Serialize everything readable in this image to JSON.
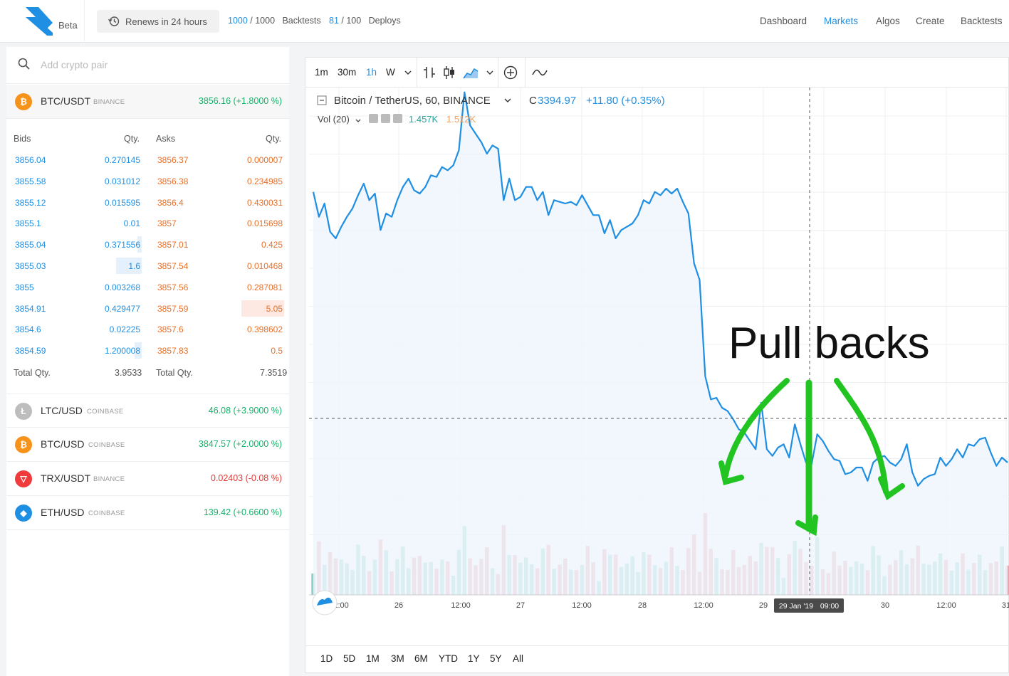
{
  "header": {
    "logo_label": "Beta",
    "renew_label": "Renews in 24 hours",
    "backtests_used": "1000",
    "backtests_total": "1000",
    "backtests_label": "Backtests",
    "deploys_used": "81",
    "deploys_total": "100",
    "deploys_label": "Deploys",
    "nav": [
      "Dashboard",
      "Markets",
      "Algos",
      "Create",
      "Backtests"
    ],
    "active_nav": "Markets"
  },
  "search": {
    "placeholder": "Add crypto pair"
  },
  "selected_pair": {
    "pair": "BTC/USDT",
    "exchange": "BINANCE",
    "price": "3856.16 (+1.8000 %)"
  },
  "orderbook": {
    "headers": {
      "bids": "Bids",
      "bid_qty": "Qty.",
      "asks": "Asks",
      "ask_qty": "Qty."
    },
    "rows": [
      {
        "bid": "3856.04",
        "bid_qty": "0.270145",
        "ask": "3856.37",
        "ask_qty": "0.000007"
      },
      {
        "bid": "3855.58",
        "bid_qty": "0.031012",
        "ask": "3856.38",
        "ask_qty": "0.234985"
      },
      {
        "bid": "3855.12",
        "bid_qty": "0.015595",
        "ask": "3856.4",
        "ask_qty": "0.430031"
      },
      {
        "bid": "3855.1",
        "bid_qty": "0.01",
        "ask": "3857",
        "ask_qty": "0.015698"
      },
      {
        "bid": "3855.04",
        "bid_qty": "0.371556",
        "ask": "3857.01",
        "ask_qty": "0.425"
      },
      {
        "bid": "3855.03",
        "bid_qty": "1.6",
        "ask": "3857.54",
        "ask_qty": "0.010468"
      },
      {
        "bid": "3855",
        "bid_qty": "0.003268",
        "ask": "3857.56",
        "ask_qty": "0.287081"
      },
      {
        "bid": "3854.91",
        "bid_qty": "0.429477",
        "ask": "3857.59",
        "ask_qty": "5.05"
      },
      {
        "bid": "3854.6",
        "bid_qty": "0.02225",
        "ask": "3857.6",
        "ask_qty": "0.398602"
      },
      {
        "bid": "3854.59",
        "bid_qty": "1.200008",
        "ask": "3857.83",
        "ask_qty": "0.5"
      }
    ],
    "total_label": "Total Qty.",
    "bid_total": "3.9533",
    "ask_total": "7.3519"
  },
  "pairs": [
    {
      "pair": "LTC/USD",
      "exchange": "COINBASE",
      "price": "46.08 (+3.9000 %)",
      "trend": "up",
      "icon": "litecoin-icon",
      "color": "#bdbdbd",
      "glyph": "Ł"
    },
    {
      "pair": "BTC/USD",
      "exchange": "COINBASE",
      "price": "3847.57 (+2.0000 %)",
      "trend": "up",
      "icon": "bitcoin-icon",
      "color": "#f7931a",
      "glyph": "₿"
    },
    {
      "pair": "TRX/USDT",
      "exchange": "BINANCE",
      "price": "0.02403 (-0.08 %)",
      "trend": "down",
      "icon": "tron-icon",
      "color": "#ef3b3b",
      "glyph": "▽"
    },
    {
      "pair": "ETH/USD",
      "exchange": "COINBASE",
      "price": "139.42 (+0.6600 %)",
      "trend": "up",
      "icon": "ethereum-icon",
      "color": "#1f8fe3",
      "glyph": "◆"
    }
  ],
  "chart_toolbar": {
    "timeframes": [
      "1m",
      "30m",
      "1h",
      "W"
    ],
    "active_timeframe": "1h"
  },
  "chart_legend": {
    "symbol": "Bitcoin / TetherUS, 60, BINANCE",
    "close_prefix": "C",
    "close": "3394.97",
    "change": "+11.80 (+0.35%)",
    "vol_label": "Vol (20)",
    "vol_a": "1.457K",
    "vol_b": "1.512K"
  },
  "chart_data": {
    "type": "line",
    "title": "",
    "x_tick_labels": [
      "12:00",
      "26",
      "12:00",
      "27",
      "12:00",
      "28",
      "12:00",
      "29",
      "09:00",
      "30",
      "12:00",
      "31"
    ],
    "crosshair_label": "29 Jan '19",
    "series": [
      {
        "values": [
          3535,
          3520,
          3528,
          3511,
          3507,
          3514,
          3520,
          3525,
          3533,
          3540,
          3530,
          3534,
          3512,
          3522,
          3520,
          3530,
          3538,
          3543,
          3536,
          3534,
          3538,
          3545,
          3544,
          3550,
          3548,
          3551,
          3560,
          3595,
          3575,
          3570,
          3565,
          3558,
          3563,
          3561,
          3530,
          3543,
          3530,
          3532,
          3538,
          3538,
          3530,
          3535,
          3521,
          3530,
          3529,
          3528,
          3529,
          3527,
          3533,
          3527,
          3521,
          3521,
          3510,
          3518,
          3507,
          3512,
          3514,
          3516,
          3521,
          3530,
          3528,
          3535,
          3533,
          3537,
          3534,
          3537,
          3529,
          3522,
          3492,
          3482,
          3424,
          3410,
          3411,
          3405,
          3403,
          3398,
          3392,
          3390,
          3385,
          3380,
          3408,
          3380,
          3376,
          3381,
          3383,
          3375,
          3395,
          3383,
          3372,
          3371,
          3389,
          3385,
          3379,
          3374,
          3373,
          3365,
          3366,
          3369,
          3369,
          3361,
          3372,
          3375,
          3376,
          3372,
          3370,
          3374,
          3383,
          3366,
          3358,
          3362,
          3364,
          3365,
          3375,
          3370,
          3374,
          3380,
          3375,
          3383,
          3382,
          3386,
          3387,
          3378,
          3370,
          3375,
          3372
        ],
        "unit": "price"
      }
    ],
    "annotation": "Pull backs",
    "grid": true
  },
  "range_buttons": [
    "1D",
    "5D",
    "1M",
    "3M",
    "6M",
    "YTD",
    "1Y",
    "5Y",
    "All"
  ]
}
